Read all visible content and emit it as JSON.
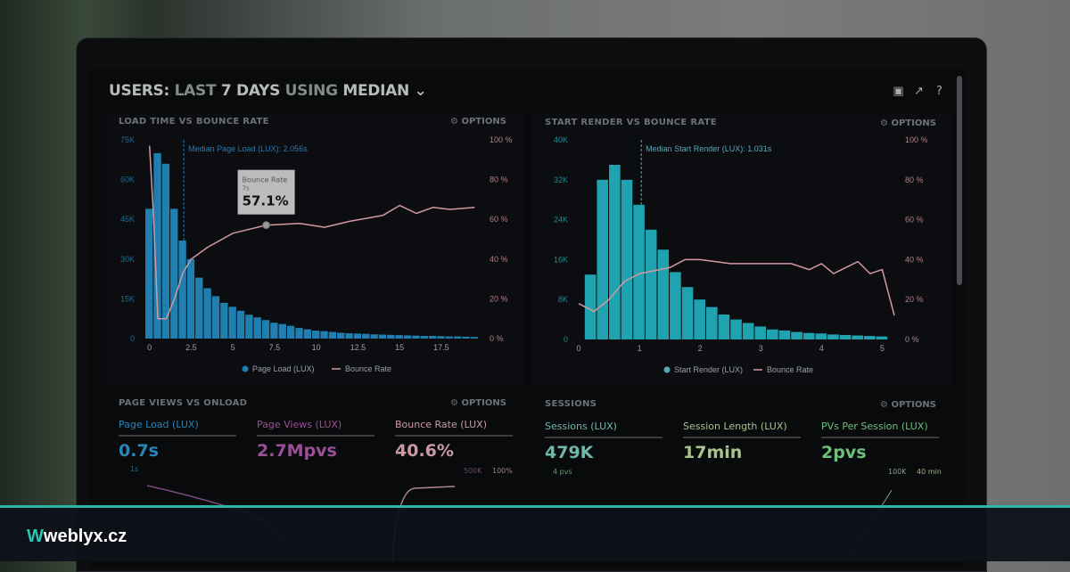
{
  "header": {
    "users": "USERS:",
    "last": "LAST",
    "days": "7 DAYS",
    "using": "USING",
    "median": "MEDIAN",
    "chevron": "chevron-down-icon"
  },
  "toolbar_icons": [
    "monitor-icon",
    "share-icon",
    "help-icon"
  ],
  "options_label": "OPTIONS",
  "colors": {
    "bar_left": "#1f7fb0",
    "bar_right": "#1fa3b0",
    "bounce": "#d09aa0",
    "accent": "#2bb5a6"
  },
  "chart_data": [
    {
      "type": "bar",
      "title": "LOAD TIME VS BOUNCE RATE",
      "annotation": "Median Page Load (LUX): 2.056s",
      "median": 2.056,
      "yticks": [
        "0",
        "15K",
        "30K",
        "45K",
        "60K",
        "75K"
      ],
      "ylim": [
        0,
        75000
      ],
      "y2ticks": [
        "0 %",
        "20 %",
        "40 %",
        "60 %",
        "80 %",
        "100 %"
      ],
      "y2lim": [
        0,
        100
      ],
      "xticks": [
        "0",
        "2.5",
        "5",
        "7.5",
        "10",
        "12.5",
        "15",
        "17.5"
      ],
      "xlim": [
        -0.25,
        19.75
      ],
      "bar_width": 0.5,
      "bars": [
        49,
        70,
        66,
        49,
        37,
        30,
        23,
        19,
        16,
        13.5,
        12,
        10.5,
        9,
        8,
        7,
        6,
        5.5,
        4.8,
        4,
        3.5,
        3,
        2.8,
        2.5,
        2.2,
        2,
        1.9,
        1.8,
        1.6,
        1.5,
        1.4,
        1.3,
        1.2,
        1.1,
        1,
        1,
        0.9,
        0.8,
        0.8,
        0.7,
        0.6
      ],
      "bar_unit": "K",
      "line": [
        [
          0,
          97
        ],
        [
          0.25,
          60
        ],
        [
          0.5,
          10
        ],
        [
          1,
          10
        ],
        [
          1.5,
          20
        ],
        [
          2,
          33
        ],
        [
          2.5,
          40
        ],
        [
          3.5,
          46
        ],
        [
          5,
          53
        ],
        [
          7,
          57.1
        ],
        [
          9,
          58
        ],
        [
          10.5,
          56
        ],
        [
          12,
          59
        ],
        [
          14,
          62
        ],
        [
          15,
          67
        ],
        [
          16,
          63
        ],
        [
          17,
          66
        ],
        [
          18,
          65
        ],
        [
          19.5,
          66
        ]
      ],
      "legend": [
        "Page Load (LUX)",
        "Bounce Rate"
      ],
      "tooltip": {
        "title": "Bounce Rate",
        "sub": "7s",
        "value": "57.1%"
      }
    },
    {
      "type": "bar",
      "title": "START RENDER VS BOUNCE RATE",
      "annotation": "Median Start Render (LUX): 1.031s",
      "median": 1.031,
      "yticks": [
        "0",
        "8K",
        "16K",
        "24K",
        "32K",
        "40K"
      ],
      "ylim": [
        0,
        40000
      ],
      "y2ticks": [
        "0 %",
        "20 %",
        "40 %",
        "60 %",
        "80 %",
        "100 %"
      ],
      "y2lim": [
        0,
        100
      ],
      "xticks": [
        "0",
        "1",
        "2",
        "3",
        "4",
        "5"
      ],
      "xlim": [
        0,
        5.2
      ],
      "bar_width": 0.2,
      "bars": [
        13,
        32,
        35,
        32,
        27,
        22,
        18,
        13.5,
        10.5,
        8,
        6.5,
        5,
        4,
        3.3,
        2.6,
        2,
        1.8,
        1.5,
        1.3,
        1.2,
        1,
        0.9,
        0.8,
        0.7,
        0.6
      ],
      "bar_unit": "K",
      "line": [
        [
          0,
          18
        ],
        [
          0.25,
          14
        ],
        [
          0.5,
          20
        ],
        [
          0.75,
          29
        ],
        [
          1,
          33
        ],
        [
          1.5,
          36
        ],
        [
          1.75,
          40
        ],
        [
          2,
          40
        ],
        [
          2.5,
          38
        ],
        [
          3.5,
          38
        ],
        [
          3.8,
          35
        ],
        [
          4,
          38
        ],
        [
          4.2,
          33
        ],
        [
          4.6,
          39
        ],
        [
          4.8,
          33
        ],
        [
          5,
          35
        ],
        [
          5.2,
          12
        ]
      ],
      "legend": [
        "Start Render (LUX)",
        "Bounce Rate"
      ]
    }
  ],
  "page_views": {
    "title": "PAGE VIEWS VS ONLOAD",
    "stats": [
      {
        "label": "Page Load (LUX)",
        "value": "0.7s",
        "color": "#2a86b8"
      },
      {
        "label": "Page Views (LUX)",
        "value": "2.7Mpvs",
        "color": "#9a4f96"
      },
      {
        "label": "Bounce Rate (LUX)",
        "value": "40.6%",
        "color": "#c99aa2"
      }
    ],
    "axis": {
      "left": "1s",
      "right1": "500K",
      "right2": "100%"
    }
  },
  "sessions": {
    "title": "SESSIONS",
    "stats": [
      {
        "label": "Sessions (LUX)",
        "value": "479K",
        "color": "#6fb8a8"
      },
      {
        "label": "Session Length (LUX)",
        "value": "17min",
        "color": "#a9c28f"
      },
      {
        "label": "PVs Per Session (LUX)",
        "value": "2pvs",
        "color": "#6fbf7a"
      }
    ],
    "axis": {
      "left": "4 pvs",
      "right1": "100K",
      "right2": "40 min"
    }
  },
  "brand": {
    "mark": "W",
    "name": "weblyx.cz"
  }
}
